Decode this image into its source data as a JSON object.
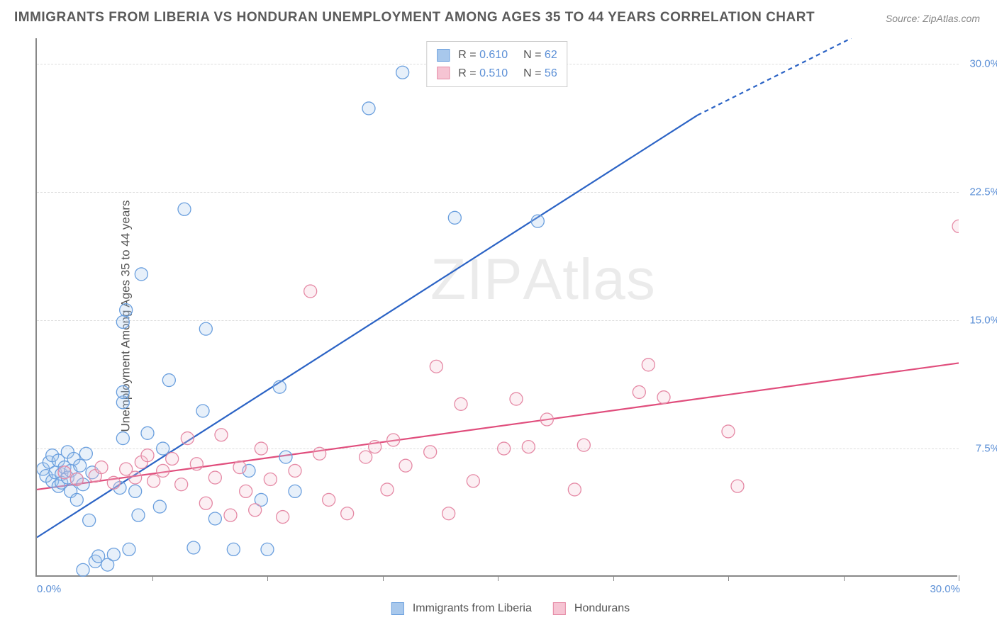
{
  "title": "IMMIGRANTS FROM LIBERIA VS HONDURAN UNEMPLOYMENT AMONG AGES 35 TO 44 YEARS CORRELATION CHART",
  "source": "Source: ZipAtlas.com",
  "y_axis_label": "Unemployment Among Ages 35 to 44 years",
  "watermark": {
    "part1": "ZIP",
    "part2": "Atlas"
  },
  "chart": {
    "type": "scatter",
    "background_color": "#ffffff",
    "grid_color": "#dddddd",
    "axis_color": "#888888",
    "xlim": [
      0,
      30
    ],
    "ylim": [
      0,
      31.5
    ],
    "x_ticks_minor": [
      3.75,
      7.5,
      11.25,
      15,
      18.75,
      22.5,
      26.25,
      30
    ],
    "x_tick_labels": {
      "min": "0.0%",
      "max": "30.0%"
    },
    "y_gridlines": [
      7.5,
      15,
      22.5,
      30
    ],
    "y_tick_labels": [
      "7.5%",
      "15.0%",
      "22.5%",
      "30.0%"
    ],
    "marker_radius": 9,
    "marker_stroke_width": 1.3,
    "marker_fill_opacity": 0.28,
    "line_width": 2.2,
    "series": [
      {
        "name": "Immigrants from Liberia",
        "color_stroke": "#6a9fde",
        "color_fill": "#a8c8ec",
        "line_color": "#2b63c5",
        "r_value": "0.610",
        "n_value": "62",
        "regression": {
          "x1": 0,
          "y1": 2.3,
          "x2": 21.5,
          "y2": 27.0,
          "dash_from_x": 21.5,
          "dash_to_x": 26.5,
          "dash_to_y": 31.5
        },
        "points": [
          [
            0.2,
            6.3
          ],
          [
            0.3,
            5.9
          ],
          [
            0.4,
            6.7
          ],
          [
            0.5,
            5.6
          ],
          [
            0.5,
            7.1
          ],
          [
            0.6,
            6.1
          ],
          [
            0.7,
            5.3
          ],
          [
            0.7,
            6.8
          ],
          [
            0.8,
            6.0
          ],
          [
            0.8,
            5.5
          ],
          [
            0.9,
            6.4
          ],
          [
            1.0,
            5.8
          ],
          [
            1.0,
            7.3
          ],
          [
            1.1,
            6.2
          ],
          [
            1.1,
            5.0
          ],
          [
            1.2,
            6.9
          ],
          [
            1.3,
            5.7
          ],
          [
            1.3,
            4.5
          ],
          [
            1.4,
            6.5
          ],
          [
            1.5,
            5.4
          ],
          [
            1.5,
            0.4
          ],
          [
            1.6,
            7.2
          ],
          [
            1.7,
            3.3
          ],
          [
            1.8,
            6.1
          ],
          [
            1.9,
            0.9
          ],
          [
            2.0,
            1.2
          ],
          [
            2.3,
            0.7
          ],
          [
            2.5,
            1.3
          ],
          [
            2.7,
            5.2
          ],
          [
            2.8,
            8.1
          ],
          [
            2.8,
            10.2
          ],
          [
            2.8,
            10.8
          ],
          [
            2.8,
            14.9
          ],
          [
            2.9,
            15.6
          ],
          [
            3.0,
            1.6
          ],
          [
            3.2,
            5.0
          ],
          [
            3.3,
            3.6
          ],
          [
            3.4,
            17.7
          ],
          [
            3.6,
            8.4
          ],
          [
            4.0,
            4.1
          ],
          [
            4.1,
            7.5
          ],
          [
            4.3,
            11.5
          ],
          [
            4.8,
            21.5
          ],
          [
            5.1,
            1.7
          ],
          [
            5.4,
            9.7
          ],
          [
            5.5,
            14.5
          ],
          [
            5.8,
            3.4
          ],
          [
            6.4,
            1.6
          ],
          [
            6.9,
            6.2
          ],
          [
            7.3,
            4.5
          ],
          [
            7.5,
            1.6
          ],
          [
            7.9,
            11.1
          ],
          [
            8.1,
            7.0
          ],
          [
            8.4,
            5.0
          ],
          [
            10.8,
            27.4
          ],
          [
            11.9,
            29.5
          ],
          [
            13.6,
            21.0
          ],
          [
            16.3,
            20.8
          ]
        ]
      },
      {
        "name": "Hondurans",
        "color_stroke": "#e589a5",
        "color_fill": "#f6c4d3",
        "line_color": "#e04d7c",
        "r_value": "0.510",
        "n_value": "56",
        "regression": {
          "x1": 0,
          "y1": 5.1,
          "x2": 30,
          "y2": 12.5
        },
        "points": [
          [
            0.9,
            6.1
          ],
          [
            1.3,
            5.7
          ],
          [
            1.9,
            5.9
          ],
          [
            2.1,
            6.4
          ],
          [
            2.5,
            5.5
          ],
          [
            2.9,
            6.3
          ],
          [
            3.2,
            5.8
          ],
          [
            3.4,
            6.7
          ],
          [
            3.6,
            7.1
          ],
          [
            3.8,
            5.6
          ],
          [
            4.1,
            6.2
          ],
          [
            4.4,
            6.9
          ],
          [
            4.7,
            5.4
          ],
          [
            4.9,
            8.1
          ],
          [
            5.2,
            6.6
          ],
          [
            5.5,
            4.3
          ],
          [
            5.8,
            5.8
          ],
          [
            6.0,
            8.3
          ],
          [
            6.3,
            3.6
          ],
          [
            6.6,
            6.4
          ],
          [
            6.8,
            5.0
          ],
          [
            7.1,
            3.9
          ],
          [
            7.3,
            7.5
          ],
          [
            7.6,
            5.7
          ],
          [
            8.0,
            3.5
          ],
          [
            8.4,
            6.2
          ],
          [
            8.9,
            16.7
          ],
          [
            9.2,
            7.2
          ],
          [
            9.5,
            4.5
          ],
          [
            10.1,
            3.7
          ],
          [
            10.7,
            7.0
          ],
          [
            11.0,
            7.6
          ],
          [
            11.4,
            5.1
          ],
          [
            11.6,
            8.0
          ],
          [
            12.0,
            6.5
          ],
          [
            12.8,
            7.3
          ],
          [
            13.0,
            12.3
          ],
          [
            13.4,
            3.7
          ],
          [
            13.8,
            10.1
          ],
          [
            14.2,
            5.6
          ],
          [
            15.2,
            7.5
          ],
          [
            15.6,
            10.4
          ],
          [
            16.0,
            7.6
          ],
          [
            16.6,
            9.2
          ],
          [
            17.5,
            5.1
          ],
          [
            17.8,
            7.7
          ],
          [
            19.6,
            10.8
          ],
          [
            19.9,
            12.4
          ],
          [
            20.4,
            10.5
          ],
          [
            22.5,
            8.5
          ],
          [
            22.8,
            5.3
          ],
          [
            30.0,
            20.5
          ]
        ]
      }
    ]
  },
  "legend_bottom": [
    {
      "label": "Immigrants from Liberia",
      "fill": "#a8c8ec",
      "stroke": "#6a9fde"
    },
    {
      "label": "Hondurans",
      "fill": "#f6c4d3",
      "stroke": "#e589a5"
    }
  ]
}
